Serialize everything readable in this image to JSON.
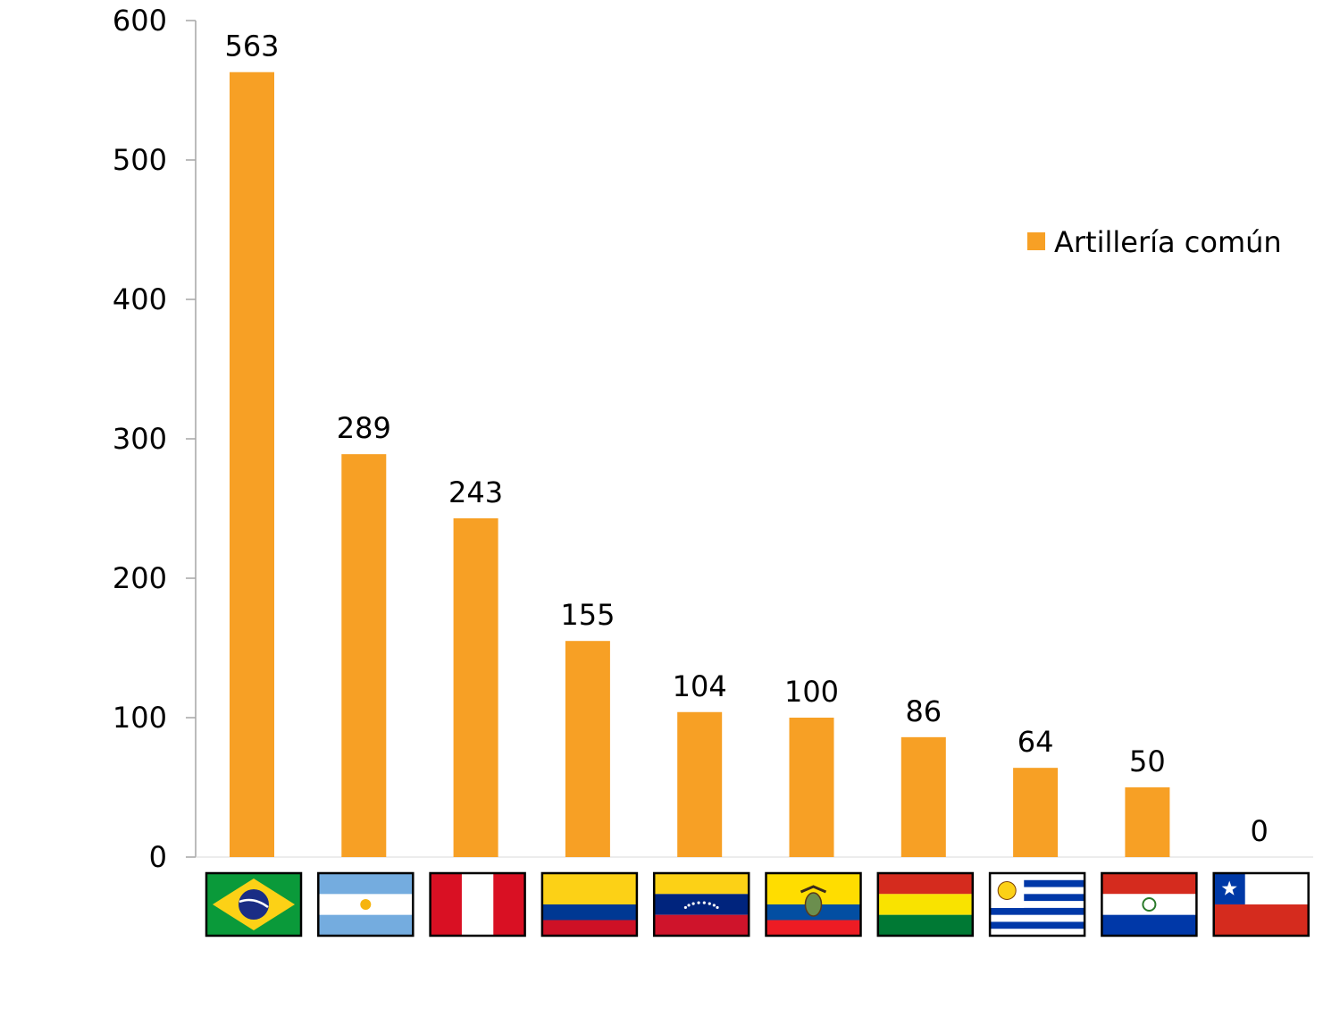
{
  "chart_data": {
    "type": "bar",
    "categories": [
      "Brazil flag",
      "Argentina flag",
      "Peru flag",
      "Colombia flag",
      "Venezuela flag",
      "Ecuador flag",
      "Bolivia flag",
      "Uruguay flag",
      "Paraguay flag",
      "Chile flag"
    ],
    "series": [
      {
        "name": "Artillería común",
        "values": [
          563,
          289,
          243,
          155,
          104,
          100,
          86,
          64,
          50,
          0
        ],
        "color": "#f7a025"
      }
    ],
    "ylim": [
      0,
      600
    ],
    "yticks": [
      0,
      100,
      200,
      300,
      400,
      500,
      600
    ],
    "grid": false,
    "legend_position": "right",
    "data_labels": true,
    "category_axis": "flags"
  }
}
